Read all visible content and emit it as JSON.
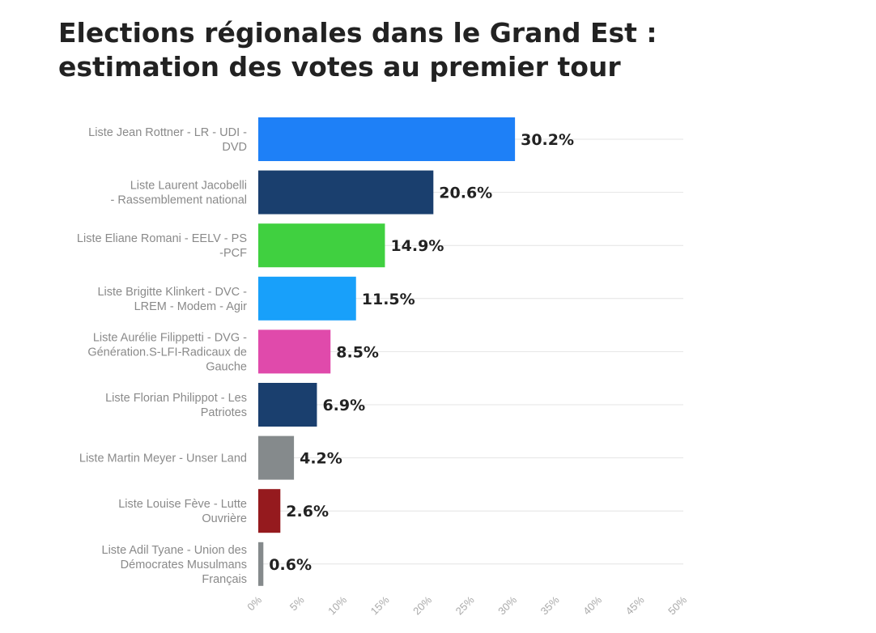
{
  "chart_data": {
    "type": "bar",
    "orientation": "horizontal",
    "title_lines": [
      "Elections régionales dans le Grand Est :",
      "estimation des votes au premier tour"
    ],
    "categories": [
      [
        "Liste Jean Rottner - LR - UDI -",
        "DVD"
      ],
      [
        "Liste Laurent Jacobelli",
        "- Rassemblement national"
      ],
      [
        "Liste Eliane Romani - EELV - PS",
        "-PCF"
      ],
      [
        "Liste Brigitte Klinkert - DVC -",
        "LREM - Modem - Agir"
      ],
      [
        "Liste Aurélie Filippetti - DVG -",
        "Génération.S-LFI-Radicaux de",
        "Gauche"
      ],
      [
        "Liste Florian Philippot - Les",
        "Patriotes"
      ],
      [
        "Liste Martin Meyer - Unser Land"
      ],
      [
        "Liste Louise Fève - Lutte",
        "Ouvrière"
      ],
      [
        "Liste Adil Tyane - Union des",
        "Démocrates Musulmans",
        "Français"
      ]
    ],
    "values": [
      30.2,
      20.6,
      14.9,
      11.5,
      8.5,
      6.9,
      4.2,
      2.6,
      0.6
    ],
    "value_labels": [
      "30.2%",
      "20.6%",
      "14.9%",
      "11.5%",
      "8.5%",
      "6.9%",
      "4.2%",
      "2.6%",
      "0.6%"
    ],
    "colors": [
      "#1e80f7",
      "#1a3f6e",
      "#40d040",
      "#18a0fa",
      "#e04aab",
      "#1a3f6e",
      "#858a8c",
      "#951a1e",
      "#858a8c"
    ],
    "xlim": [
      0,
      50
    ],
    "ticks": [
      "0%",
      "5%",
      "10%",
      "15%",
      "20%",
      "25%",
      "30%",
      "35%",
      "40%",
      "45%",
      "50%"
    ],
    "grid": true
  }
}
